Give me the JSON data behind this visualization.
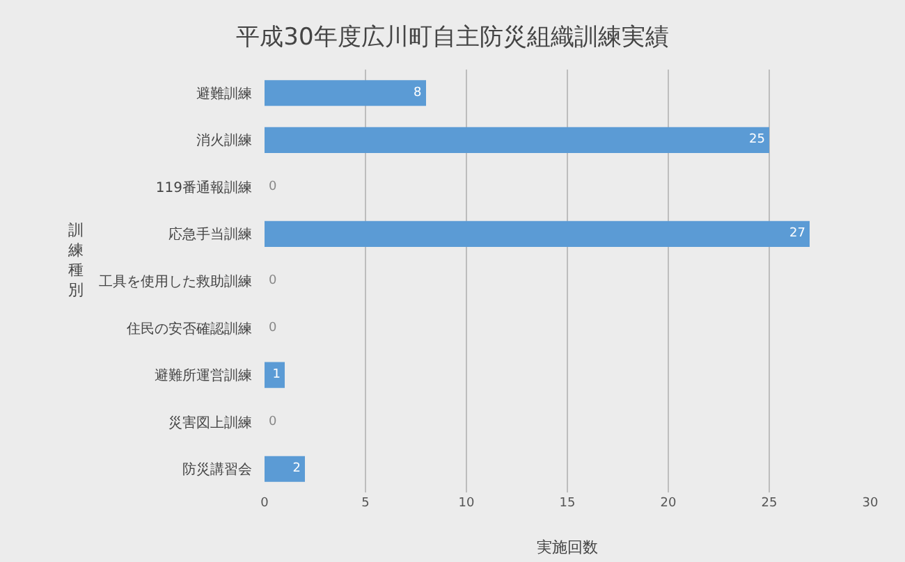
{
  "chart_data": {
    "type": "bar",
    "orientation": "horizontal",
    "title": "平成30年度広川町自主防災組織訓練実績",
    "xlabel": "実施回数",
    "ylabel": "訓練種別",
    "categories": [
      "避難訓練",
      "消火訓練",
      "119番通報訓練",
      "応急手当訓練",
      "工具を使用した救助訓練",
      "住民の安否確認訓練",
      "避難所運営訓練",
      "災害図上訓練",
      "防災講習会"
    ],
    "values": [
      8,
      25,
      0,
      27,
      0,
      0,
      1,
      0,
      2
    ],
    "color": "#5b9bd5",
    "data_labels": true,
    "xlim": [
      0,
      30
    ],
    "xticks": [
      0,
      5,
      10,
      15,
      20,
      25,
      30
    ],
    "grid": "x"
  }
}
